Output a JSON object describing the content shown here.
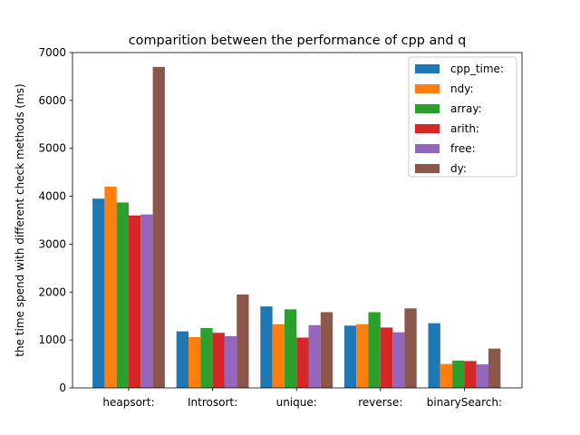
{
  "chart_data": {
    "type": "bar",
    "title": "comparition between the performance of cpp and q",
    "xlabel": "",
    "ylabel": "the time spend with different check methods (ms)",
    "categories": [
      "heapsort:",
      "Introsort:",
      "unique:",
      "reverse:",
      "binarySearch:"
    ],
    "ylim": [
      0,
      7000
    ],
    "yticks": [
      "0",
      "1000",
      "2000",
      "3000",
      "4000",
      "5000",
      "6000",
      "7000"
    ],
    "grid": false,
    "legend_position": "top-right",
    "series": [
      {
        "name": "cpp_time:",
        "color": "#1f77b4",
        "values": [
          3950,
          1180,
          1700,
          1300,
          1350
        ]
      },
      {
        "name": "ndy:",
        "color": "#ff7f0e",
        "values": [
          4200,
          1060,
          1330,
          1330,
          500
        ]
      },
      {
        "name": "array:",
        "color": "#2ca02c",
        "values": [
          3870,
          1250,
          1640,
          1580,
          570
        ]
      },
      {
        "name": "arith:",
        "color": "#d62728",
        "values": [
          3600,
          1150,
          1050,
          1260,
          560
        ]
      },
      {
        "name": "free:",
        "color": "#9467bd",
        "values": [
          3620,
          1080,
          1310,
          1160,
          490
        ]
      },
      {
        "name": "dy:",
        "color": "#8c564b",
        "values": [
          6700,
          1950,
          1580,
          1660,
          820
        ]
      }
    ]
  }
}
